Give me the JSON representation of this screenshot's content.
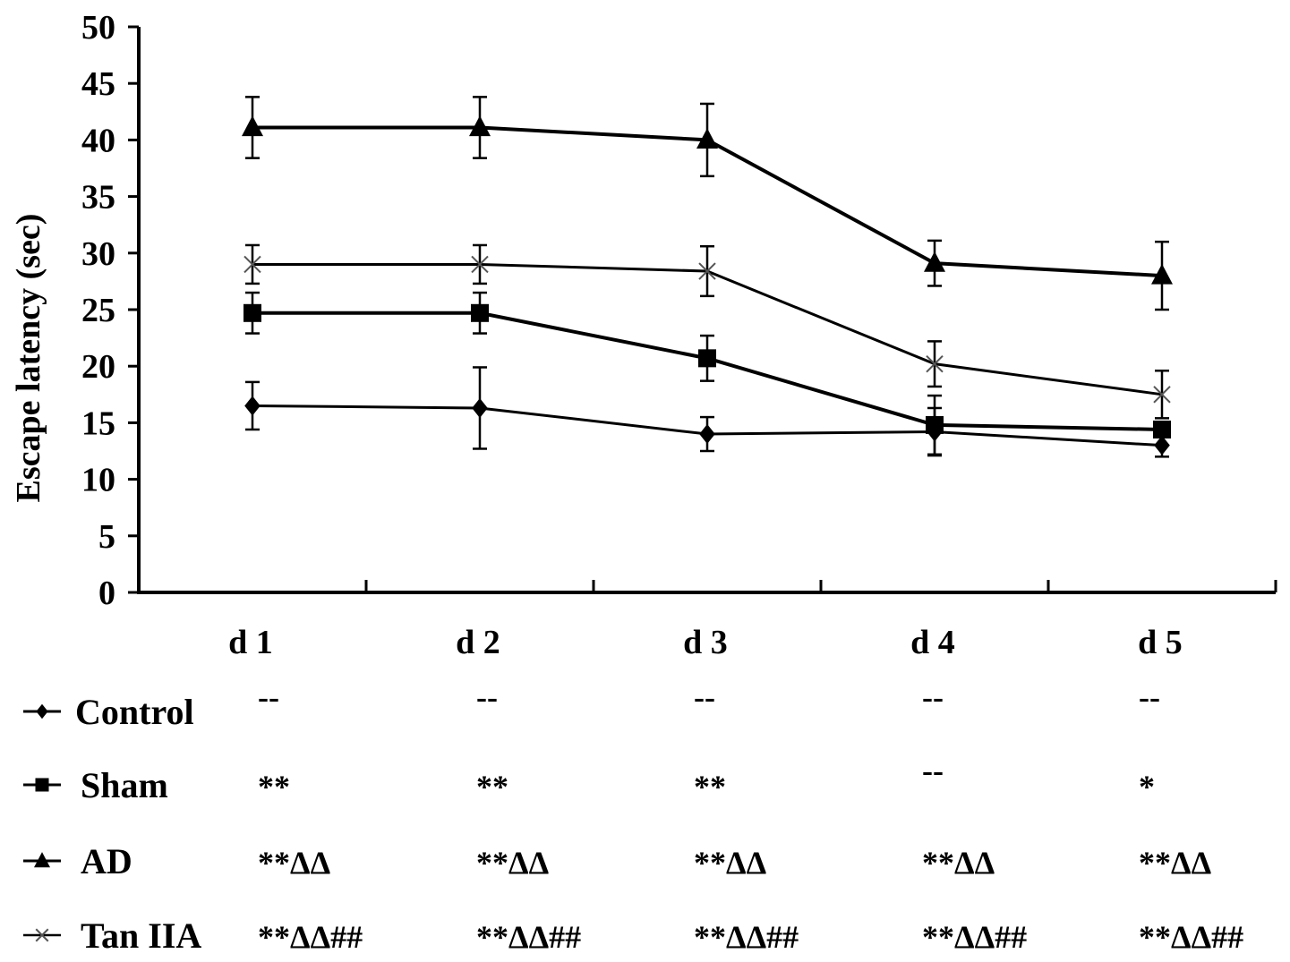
{
  "chart_data": {
    "type": "line",
    "ylabel": "Escape latency (sec)",
    "xlabel": "",
    "ylim": [
      0,
      50
    ],
    "yticks": [
      "0",
      "5",
      "10",
      "15",
      "20",
      "25",
      "30",
      "35",
      "40",
      "45",
      "50"
    ],
    "categories": [
      "d 1",
      "d 2",
      "d 3",
      "d 4",
      "d 5"
    ],
    "grid": false,
    "legend_placement": "bottom-left table",
    "series": [
      {
        "name": "Control",
        "marker": "diamond",
        "values": [
          16.5,
          16.3,
          14.0,
          14.2,
          13.0
        ],
        "errors": [
          2.1,
          3.6,
          1.5,
          2.1,
          1.0
        ],
        "significance": [
          "--",
          "--",
          "--",
          "--",
          "--"
        ]
      },
      {
        "name": "Sham",
        "marker": "square",
        "values": [
          24.7,
          24.7,
          20.7,
          14.8,
          14.4
        ],
        "errors": [
          1.8,
          1.8,
          2.0,
          2.6,
          0.5
        ],
        "significance": [
          "**",
          "**",
          "**",
          "--",
          "*"
        ]
      },
      {
        "name": "AD",
        "marker": "triangle",
        "values": [
          41.1,
          41.1,
          40.0,
          29.1,
          28.0
        ],
        "errors": [
          2.7,
          2.7,
          3.2,
          2.0,
          3.0
        ],
        "significance": [
          "**ΔΔ",
          "**ΔΔ",
          "**ΔΔ",
          "**ΔΔ",
          "**ΔΔ"
        ]
      },
      {
        "name": "Tan IIA",
        "marker": "x",
        "values": [
          29.0,
          29.0,
          28.4,
          20.2,
          17.5
        ],
        "errors": [
          1.7,
          1.7,
          2.2,
          2.0,
          2.1
        ],
        "significance": [
          "**ΔΔ##",
          "**ΔΔ##",
          "**ΔΔ##",
          "**ΔΔ##",
          "**ΔΔ##"
        ]
      }
    ]
  }
}
